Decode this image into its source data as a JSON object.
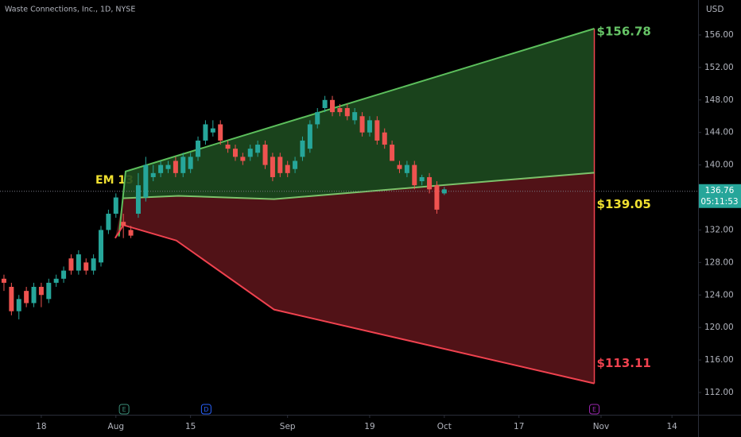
{
  "chart_data": {
    "type": "candlestick",
    "title": "Waste Connections, Inc., 1D, NYSE",
    "currency": "USD",
    "annotation": "EM 13",
    "xlim": [
      -0.53,
      93
    ],
    "ylim": [
      109.26,
      160.3
    ],
    "xticks": [
      {
        "value": 5,
        "label": "18"
      },
      {
        "value": 15,
        "label": "Aug"
      },
      {
        "value": 25,
        "label": "15"
      },
      {
        "value": 38,
        "label": "Sep"
      },
      {
        "value": 49,
        "label": "19"
      },
      {
        "value": 59,
        "label": "Oct"
      },
      {
        "value": 69,
        "label": "17"
      },
      {
        "value": 80,
        "label": "Nov"
      },
      {
        "value": 89.5,
        "label": "14"
      }
    ],
    "yticks": [
      {
        "value": 112,
        "label": "112.00"
      },
      {
        "value": 116,
        "label": "116.00"
      },
      {
        "value": 120,
        "label": "120.00"
      },
      {
        "value": 124,
        "label": "124.00"
      },
      {
        "value": 128,
        "label": "128.00"
      },
      {
        "value": 132,
        "label": "132.00"
      },
      {
        "value": 136,
        "label": "136.00"
      },
      {
        "value": 140,
        "label": "140.00"
      },
      {
        "value": 144,
        "label": "144.00"
      },
      {
        "value": 148,
        "label": "148.00"
      },
      {
        "value": 152,
        "label": "152.00"
      },
      {
        "value": 156,
        "label": "156.00"
      }
    ],
    "up_color": "#26a69a",
    "down_color": "#ef5350",
    "open": [
      126,
      125,
      122,
      124.5,
      123,
      125,
      123.5,
      125.5,
      126,
      128.5,
      127,
      128,
      127,
      128,
      132,
      134,
      133,
      132,
      134,
      136,
      138.5,
      139,
      139.5,
      140.5,
      139,
      139.5,
      141,
      143,
      144,
      145,
      142.5,
      142,
      141,
      141,
      141.5,
      142.5,
      141,
      141,
      140,
      139.5,
      141,
      142,
      145,
      147,
      148,
      147,
      147,
      145.5,
      146,
      144,
      145.5,
      144,
      142.5,
      140,
      139,
      140,
      138,
      138.5,
      137.5,
      136.5
    ],
    "high": [
      126.5,
      125.5,
      124,
      125,
      125.5,
      125.5,
      126,
      126.5,
      127.5,
      129,
      129.5,
      128.5,
      129,
      132.5,
      134.5,
      136.5,
      134,
      132.5,
      139,
      141,
      140,
      140.5,
      140.5,
      141,
      141.5,
      141.5,
      143.5,
      145.5,
      145.5,
      145.5,
      143,
      142.5,
      141.5,
      142.5,
      143,
      143,
      141.5,
      141.5,
      140.5,
      141,
      143.5,
      145.5,
      147,
      148.5,
      148.5,
      147.5,
      147.5,
      147,
      146.5,
      146,
      146,
      144.5,
      143,
      140.5,
      140.5,
      140.5,
      138.8,
      139,
      138,
      137.3
    ],
    "low": [
      124.5,
      121.5,
      121,
      122.5,
      122.5,
      122.5,
      123,
      125,
      125.5,
      126.5,
      126.5,
      126.5,
      126.5,
      127.5,
      131.5,
      133.5,
      131,
      131,
      133.5,
      135.5,
      138,
      138.5,
      139,
      138.5,
      138.5,
      139,
      140.5,
      142.5,
      143.5,
      142.5,
      141.5,
      140.5,
      140,
      140.5,
      141,
      139.5,
      138,
      138.5,
      138.5,
      139,
      140.5,
      141.5,
      144.5,
      146.5,
      146,
      146,
      145.5,
      145,
      143.5,
      143.5,
      142.5,
      142,
      140.5,
      139,
      138.5,
      137,
      137.5,
      136.5,
      134,
      136.3
    ],
    "close": [
      125.5,
      122,
      123.5,
      123,
      125,
      124,
      125.5,
      126,
      127,
      127,
      129,
      127,
      128.5,
      132,
      134,
      136,
      132.5,
      131.3,
      137.5,
      140,
      139,
      140,
      140,
      139,
      141,
      141,
      143,
      145,
      144.5,
      143,
      142,
      141,
      140.5,
      142,
      142.5,
      140,
      138.5,
      139,
      139,
      140.5,
      143,
      145,
      146.5,
      148,
      146.5,
      146.5,
      146,
      146.5,
      144,
      145.5,
      143,
      142.5,
      140.5,
      139.5,
      140,
      137.5,
      138.5,
      137,
      134.5,
      137
    ],
    "bands": [
      {
        "color": "#5cbf5c",
        "fill": "#1d4a1f",
        "x": [
          15.4,
          16.3,
          79.1
        ],
        "values": [
          131.2,
          139.2,
          156.78
        ],
        "label": "$156.78",
        "label_color": "#66c466"
      },
      {
        "color": "#7cc26a",
        "fill": "#5a1419",
        "x": [
          16,
          23.4,
          36.2,
          79.1
        ],
        "values": [
          135.9,
          136.2,
          135.8,
          139.05
        ],
        "label": "$139.05",
        "label_color": "#f0e030"
      },
      {
        "color": "#f0424f",
        "x": [
          14.9,
          16,
          23.1,
          36.2,
          79.1
        ],
        "values": [
          131,
          132.6,
          130.7,
          122.2,
          113.11
        ],
        "label": "$113.11",
        "label_color": "#f0424f"
      }
    ],
    "last_price": 136.76,
    "countdown": "05:11:53",
    "events": [
      {
        "x": 16.1,
        "label": "E",
        "color": "#3b8f7a"
      },
      {
        "x": 27.1,
        "label": "D",
        "color": "#2962ff"
      },
      {
        "x": 79.1,
        "label": "E",
        "color": "#9c27b0"
      }
    ]
  }
}
